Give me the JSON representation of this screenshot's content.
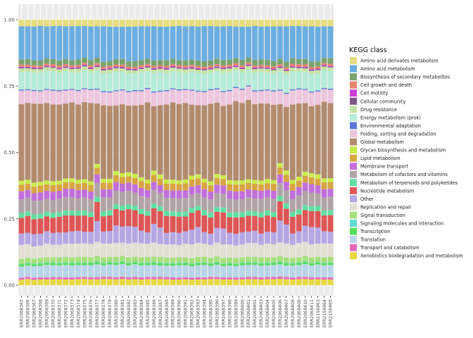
{
  "chart_data": {
    "type": "bar",
    "stacked": true,
    "ylim": [
      0,
      1
    ],
    "yticks": [
      "0.00",
      "0.25",
      "0.50",
      "0.75",
      "1.00"
    ],
    "ytick_values": [
      0,
      0.25,
      0.5,
      0.75,
      1.0
    ],
    "grid": true,
    "legend_position": "right",
    "legend_title": "KEGG class",
    "categories": [
      "ERR2068365",
      "ERR2068366",
      "ERR2068367",
      "ERR2068368",
      "ERR2068369",
      "ERR2068370",
      "ERR2068371",
      "ERR2068372",
      "ERR2068373",
      "ERR2068374",
      "ERR2068375",
      "ERR2068376",
      "ERR2068377",
      "ERR2068378",
      "ERR2068379",
      "ERR2068380",
      "ERR2068381",
      "ERR2068382",
      "ERR2068383",
      "ERR2068384",
      "ERR2068385",
      "ERR2068386",
      "ERR2068387",
      "ERR2068388",
      "ERR2068389",
      "ERR2068390",
      "ERR2068391",
      "ERR2068392",
      "ERR2068393",
      "ERR2068394",
      "ERR2068395",
      "ERR2068396",
      "ERR2068397",
      "ERR2068398",
      "ERR2068399",
      "ERR2068400",
      "ERR2068401",
      "ERR2068402",
      "ERR2068403",
      "ERR2068404",
      "ERR2068405",
      "ERR2068406",
      "ERR2068407",
      "ERR2068408",
      "ERR2068409",
      "ERR2068410",
      "ERR2068411",
      "ERR2156963",
      "ERR2156964",
      "ERR2156965"
    ],
    "series": [
      {
        "name": "Amino acid derivates metabolism",
        "color": "#e6dd7c"
      },
      {
        "name": "Amino acid metabolism",
        "color": "#6aaee2"
      },
      {
        "name": "Biosynthesis of secondary metabolites",
        "color": "#7ba36d"
      },
      {
        "name": "Cell growth and death",
        "color": "#e8846e"
      },
      {
        "name": "Cell motility",
        "color": "#cf3fd6"
      },
      {
        "name": "Cellular community",
        "color": "#7d5485"
      },
      {
        "name": "Drug resistance",
        "color": "#c5e4a5"
      },
      {
        "name": "Energy metabolism (prok)",
        "color": "#b4ecd9"
      },
      {
        "name": "Environmental adaptation",
        "color": "#5b78d8"
      },
      {
        "name": "Folding, sorting and degradation",
        "color": "#efc5de"
      },
      {
        "name": "Global metabolism",
        "color": "#b38b6d"
      },
      {
        "name": "Glycan biosynthesis and metabolism",
        "color": "#c9ec4a"
      },
      {
        "name": "Lipid metabolism",
        "color": "#d9a441"
      },
      {
        "name": "Membrane transport",
        "color": "#c26fdc"
      },
      {
        "name": "Metabolism of cofactors and vitamins",
        "color": "#b0a4a4"
      },
      {
        "name": "Metabolism of terpenoids and polyketides",
        "color": "#5fe0a3"
      },
      {
        "name": "Nucleotide metabolism",
        "color": "#e05555"
      },
      {
        "name": "Other",
        "color": "#b5a7e5"
      },
      {
        "name": "Replication and repair",
        "color": "#e1e0d2"
      },
      {
        "name": "Signal transduction",
        "color": "#a5e07a"
      },
      {
        "name": "Signaling molecules and interaction",
        "color": "#5ed9d6"
      },
      {
        "name": "Transcription",
        "color": "#55df58"
      },
      {
        "name": "Translation",
        "color": "#b8d5ea"
      },
      {
        "name": "Transport and catabolism",
        "color": "#e66ab8"
      },
      {
        "name": "Xenobiotics biodegradation and metabolism",
        "color": "#e8d941"
      }
    ],
    "bar_composition": {
      "stack_order_bottom_to_top": [
        "Xenobiotics biodegradation and metabolism",
        "Transport and catabolism",
        "Translation",
        "Transcription",
        "Signaling molecules and interaction",
        "Signal transduction",
        "Replication and repair",
        "Other",
        "Nucleotide metabolism",
        "Metabolism of terpenoids and polyketides",
        "Metabolism of cofactors and vitamins",
        "Membrane transport",
        "Lipid metabolism",
        "Glycan biosynthesis and metabolism",
        "Global metabolism",
        "Folding, sorting and degradation",
        "Environmental adaptation",
        "Energy metabolism (prok)",
        "Drug resistance",
        "Cellular community",
        "Cell motility",
        "Cell growth and death",
        "Biosynthesis of secondary metabolites",
        "Amino acid metabolism",
        "Amino acid derivates metabolism"
      ],
      "typical_sample": {
        "Xenobiotics biodegradation and metabolism": 0.022,
        "Transport and catabolism": 0.008,
        "Translation": 0.045,
        "Transcription": 0.008,
        "Signaling molecules and interaction": 0.002,
        "Signal transduction": 0.02,
        "Replication and repair": 0.05,
        "Other": 0.045,
        "Nucleotide metabolism": 0.06,
        "Metabolism of terpenoids and polyketides": 0.018,
        "Metabolism of cofactors and vitamins": 0.05,
        "Membrane transport": 0.03,
        "Lipid metabolism": 0.025,
        "Glycan biosynthesis and metabolism": 0.015,
        "Global metabolism": 0.29,
        "Folding, sorting and degradation": 0.05,
        "Environmental adaptation": 0.004,
        "Energy metabolism (prok)": 0.065,
        "Drug resistance": 0.013,
        "Cellular community": 0.003,
        "Cell motility": 0.003,
        "Cell growth and death": 0.008,
        "Biosynthesis of secondary metabolites": 0.02,
        "Amino acid metabolism": 0.126,
        "Amino acid derivates metabolism": 0.025
      }
    },
    "variant_samples": {
      "ERR2068377": {
        "Other": 0.075,
        "Nucleotide metabolism": 0.07,
        "Global metabolism": 0.22,
        "Amino acid metabolism": 0.115
      },
      "ERR2068380": {
        "Other": 0.065,
        "Global metabolism": 0.245
      },
      "ERR2068381": {
        "Other": 0.06,
        "Global metabolism": 0.255
      },
      "ERR2068382": {
        "Other": 0.065,
        "Global metabolism": 0.25
      },
      "ERR2068383": {
        "Other": 0.06,
        "Global metabolism": 0.255
      },
      "ERR2068386": {
        "Other": 0.07,
        "Global metabolism": 0.24
      },
      "ERR2068387": {
        "Other": 0.06,
        "Global metabolism": 0.255
      },
      "ERR2068392": {
        "Other": 0.055,
        "Global metabolism": 0.265
      },
      "ERR2068393": {
        "Other": 0.06,
        "Global metabolism": 0.26
      },
      "ERR2068396": {
        "Other": 0.055,
        "Global metabolism": 0.265
      },
      "ERR2068397": {
        "Other": 0.06,
        "Global metabolism": 0.26
      },
      "ERR2068406": {
        "Other": 0.08,
        "Nucleotide metabolism": 0.07,
        "Global metabolism": 0.215,
        "Amino acid metabolism": 0.118
      },
      "ERR2068407": {
        "Other": 0.07,
        "Global metabolism": 0.235
      },
      "ERR2068410": {
        "Other": 0.06,
        "Global metabolism": 0.255
      },
      "ERR2068411": {
        "Other": 0.065,
        "Global metabolism": 0.25
      },
      "ERR2156963": {
        "Other": 0.06,
        "Global metabolism": 0.26
      }
    }
  }
}
